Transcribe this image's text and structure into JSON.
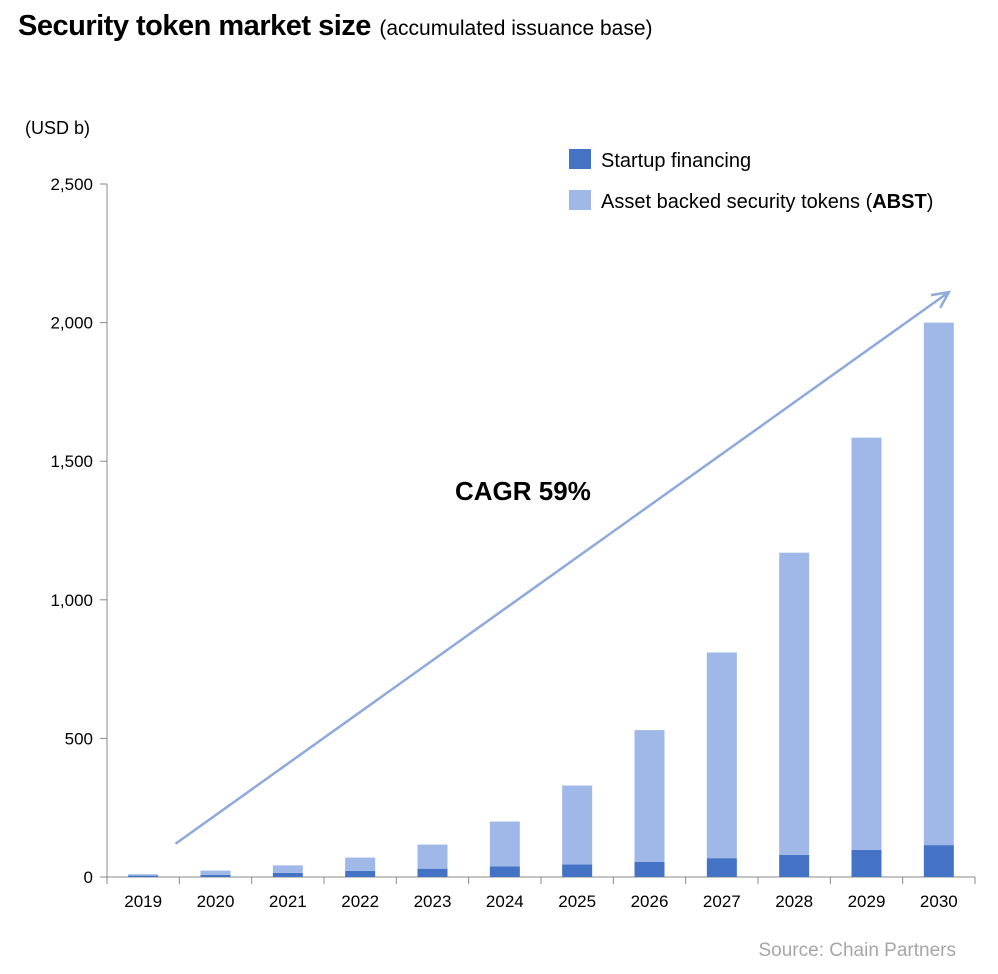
{
  "chart_data": {
    "type": "bar",
    "stacked": true,
    "title": "Security token market size",
    "subtitle": "(accumulated issuance base)",
    "ylabel": "(USD b)",
    "xlabel": "",
    "ylim": [
      0,
      2500
    ],
    "yticks": [
      0,
      500,
      1000,
      1500,
      2000,
      2500
    ],
    "ytick_labels": [
      "0",
      "500",
      "1,000",
      "1,500",
      "2,000",
      "2,500"
    ],
    "categories": [
      "2019",
      "2020",
      "2021",
      "2022",
      "2023",
      "2024",
      "2025",
      "2026",
      "2027",
      "2028",
      "2029",
      "2030"
    ],
    "series": [
      {
        "name": "Startup financing",
        "color": "#4472c4",
        "values": [
          5,
          8,
          15,
          22,
          30,
          38,
          45,
          55,
          68,
          80,
          98,
          115
        ]
      },
      {
        "name": "Asset backed security tokens (ABST)",
        "color": "#a0b8e8",
        "values": [
          5,
          15,
          27,
          48,
          87,
          162,
          285,
          475,
          742,
          1090,
          1487,
          1885
        ]
      }
    ],
    "legend": {
      "position": "top-right",
      "items": [
        {
          "prefix": "Startup financing",
          "bold": "",
          "suffix": ""
        },
        {
          "prefix": "Asset backed security tokens (",
          "bold": "ABST",
          "suffix": ")"
        }
      ]
    },
    "annotations": {
      "cagr_label": "CAGR 59%",
      "arrow": {
        "from": {
          "category": "2020",
          "value": 120
        },
        "to": {
          "category": "2030",
          "value": 2110
        }
      },
      "arrow_color": "#8eaadb"
    },
    "grid": false
  },
  "source": "Source: Chain Partners"
}
